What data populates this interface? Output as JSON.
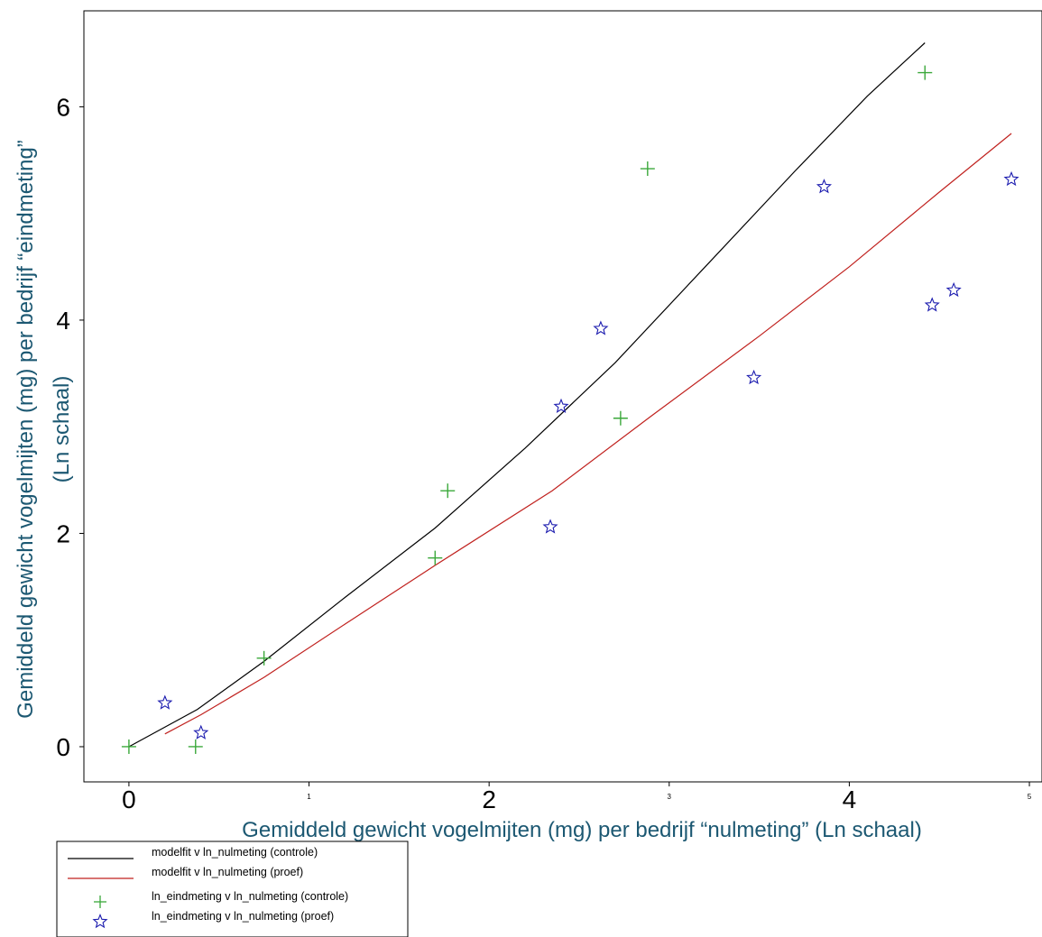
{
  "chart_data": {
    "type": "scatter",
    "xlabel": "Gemiddeld gewicht vogelmijten (mg) per bedrijf “nulmeting” (Ln schaal)",
    "ylabel": [
      "Gemiddeld gewicht vogelmijten (mg) per bedrijf “eindmeting”",
      "(Ln schaal)"
    ],
    "xlim": [
      -0.25,
      5.07
    ],
    "ylim": [
      -0.33,
      6.9
    ],
    "x_ticks": [
      {
        "value": 0,
        "label": "0",
        "size": "large"
      },
      {
        "value": 1,
        "label": "1",
        "size": "small"
      },
      {
        "value": 2,
        "label": "2",
        "size": "large"
      },
      {
        "value": 3,
        "label": "3",
        "size": "small"
      },
      {
        "value": 4,
        "label": "4",
        "size": "large"
      },
      {
        "value": 5,
        "label": "5",
        "size": "small"
      }
    ],
    "y_ticks": [
      {
        "value": 0,
        "label": "0",
        "size": "large"
      },
      {
        "value": 2,
        "label": "2",
        "size": "large"
      },
      {
        "value": 4,
        "label": "4",
        "size": "large"
      },
      {
        "value": 6,
        "label": "6",
        "size": "large"
      }
    ],
    "series": [
      {
        "name": "modelfit v ln_nulmeting (controle)",
        "kind": "line",
        "color": "#000000",
        "x": [
          0,
          0.38,
          0.75,
          1.2,
          1.7,
          2.2,
          2.7,
          3.2,
          3.7,
          4.1,
          4.42
        ],
        "y": [
          0,
          0.35,
          0.8,
          1.4,
          2.05,
          2.8,
          3.6,
          4.5,
          5.4,
          6.1,
          6.6
        ]
      },
      {
        "name": "modelfit v ln_nulmeting (proef)",
        "kind": "line",
        "color": "#c0211e",
        "x": [
          0.2,
          0.4,
          0.75,
          1.2,
          1.7,
          2.35,
          2.9,
          3.5,
          4.0,
          4.5,
          4.9
        ],
        "y": [
          0.12,
          0.3,
          0.65,
          1.15,
          1.7,
          2.4,
          3.1,
          3.85,
          4.5,
          5.2,
          5.75
        ]
      },
      {
        "name": "ln_eindmeting v ln_nulmeting (controle)",
        "kind": "marker",
        "marker": "plus",
        "color": "#3aa83a",
        "x": [
          0,
          0.37,
          0.75,
          1.7,
          1.77,
          2.73,
          2.88,
          4.42
        ],
        "y": [
          0,
          0,
          0.83,
          1.77,
          2.4,
          3.08,
          5.42,
          6.32
        ]
      },
      {
        "name": "ln_eindmeting v ln_nulmeting (proef)",
        "kind": "marker",
        "marker": "star",
        "color": "#1c1caf",
        "x": [
          0.2,
          0.4,
          2.34,
          2.4,
          2.62,
          3.47,
          3.86,
          4.46,
          4.58,
          4.9
        ],
        "y": [
          0.41,
          0.13,
          2.06,
          3.19,
          3.92,
          3.46,
          5.25,
          4.14,
          4.28,
          5.32
        ]
      }
    ]
  }
}
